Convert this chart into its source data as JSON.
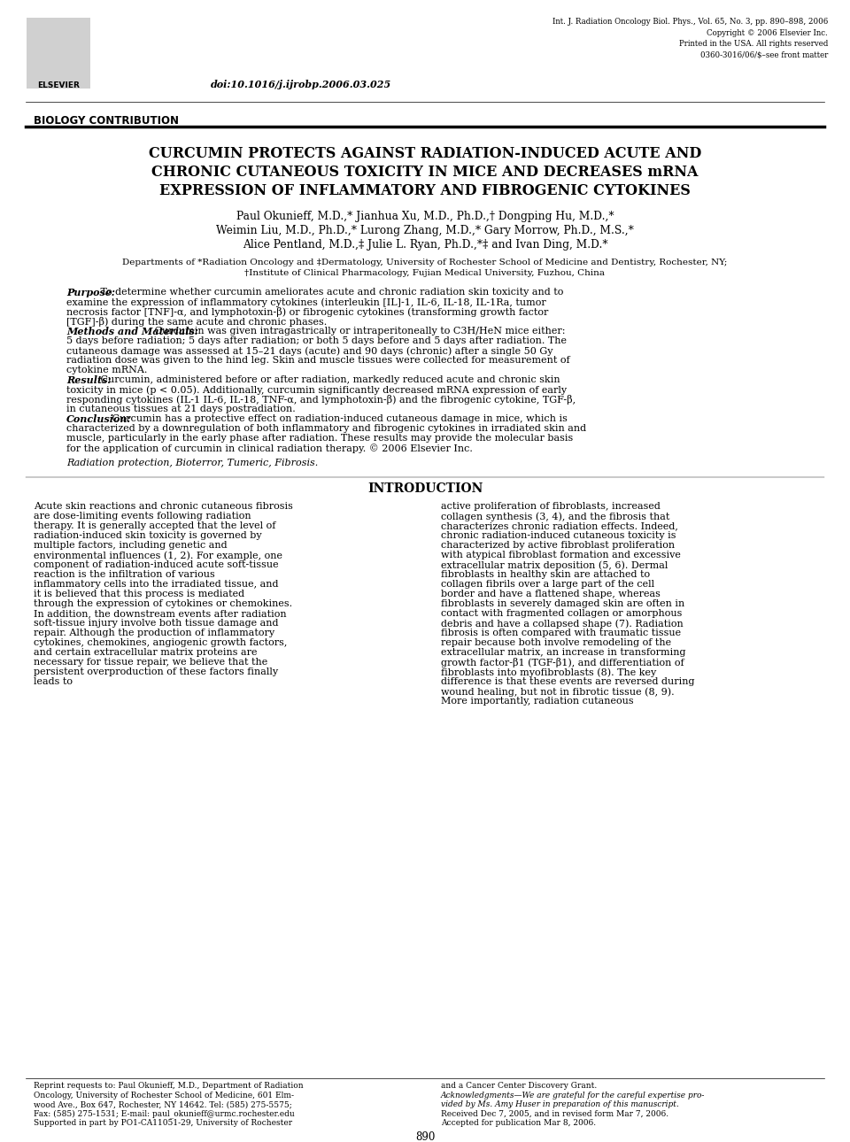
{
  "bg_color": "#ffffff",
  "header_journal": "Int. J. Radiation Oncology Biol. Phys., Vol. 65, No. 3, pp. 890–898, 2006",
  "header_copyright": "Copyright © 2006 Elsevier Inc.",
  "header_printed": "Printed in the USA. All rights reserved",
  "header_issn": "0360-3016/06/$–see front matter",
  "doi": "doi:10.1016/j.ijrobp.2006.03.025",
  "section_label": "BIOLOGY CONTRIBUTION",
  "paper_title_line1": "CURCUMIN PROTECTS AGAINST RADIATION-INDUCED ACUTE AND",
  "paper_title_line2": "CHRONIC CUTANEOUS TOXICITY IN MICE AND DECREASES mRNA",
  "paper_title_line3": "EXPRESSION OF INFLAMMATORY AND FIBROGENIC CYTOKINES",
  "authors_line1": "Paul Okunieff, M.D.,* Jianhua Xu, M.D., Ph.D.,† Dongping Hu, M.D.,*",
  "authors_line2": "Weimin Liu, M.D., Ph.D.,* Lurong Zhang, M.D.,* Gary Morrow, Ph.D., M.S.,*",
  "authors_line3": "Alice Pentland, M.D.,‡ Julie L. Ryan, Ph.D.,*‡ and Ivan Ding, M.D.*",
  "affil1": "Departments of *Radiation Oncology and ‡Dermatology, University of Rochester School of Medicine and Dentistry, Rochester, NY;",
  "affil2": "†Institute of Clinical Pharmacology, Fujian Medical University, Fuzhou, China",
  "abstract_purpose_label": "Purpose:",
  "abstract_purpose": " To determine whether curcumin ameliorates acute and chronic radiation skin toxicity and to examine the expression of inflammatory cytokines (interleukin [IL]-1, IL-6, IL-18, IL-1Ra, tumor necrosis factor [TNF]-α, and lymphotoxin-β) or fibrogenic cytokines (transforming growth factor [TGF]-β) during the same acute and chronic phases.",
  "abstract_methods_label": "Methods and Materials:",
  "abstract_methods": " Curcumin was given intragastrically or intraperitoneally to C3H/HeN mice either: 5 days before radiation; 5 days after radiation; or both 5 days before and 5 days after radiation. The cutaneous damage was assessed at 15–21 days (acute) and 90 days (chronic) after a single 50 Gy radiation dose was given to the hind leg. Skin and muscle tissues were collected for measurement of cytokine mRNA.",
  "abstract_results_label": "Results:",
  "abstract_results": " Curcumin, administered before or after radiation, markedly reduced acute and chronic skin toxicity in mice (p < 0.05). Additionally, curcumin significantly decreased mRNA expression of early responding cytokines (IL-1 IL-6, IL-18, TNF-α, and lymphotoxin-β) and the fibrogenic cytokine, TGF-β, in cutaneous tissues at 21 days postradiation.",
  "abstract_conclusion_label": "Conclusion:",
  "abstract_conclusion": " Curcumin has a protective effect on radiation-induced cutaneous damage in mice, which is characterized by a downregulation of both inflammatory and fibrogenic cytokines in irradiated skin and muscle, particularly in the early phase after radiation. These results may provide the molecular basis for the application of curcumin in clinical radiation therapy.  © 2006 Elsevier Inc.",
  "keywords_label": "Radiation protection, Bioterror, Tumeric, Fibrosis.",
  "intro_heading": "INTRODUCTION",
  "intro_col1_para1": "Acute skin reactions and chronic cutaneous fibrosis are dose-limiting events following radiation therapy. It is generally accepted that the level of radiation-induced skin toxicity is governed by multiple factors, including genetic and environmental influences (1, 2). For example, one component of radiation-induced acute soft-tissue reaction is the infiltration of various inflammatory cells into the irradiated tissue, and it is believed that this process is mediated through the expression of cytokines or chemokines. In addition, the downstream events after radiation soft-tissue injury involve both tissue damage and repair. Although the production of inflammatory cytokines, chemokines, angiogenic growth factors, and certain extracellular matrix proteins are necessary for tissue repair, we believe that the persistent overproduction of these factors finally leads to",
  "intro_col2_para1": "active proliferation of fibroblasts, increased collagen synthesis (3, 4), and the fibrosis that characterizes chronic radiation effects. Indeed, chronic radiation-induced cutaneous toxicity is characterized by active fibroblast proliferation with atypical fibroblast formation and excessive extracellular matrix deposition (5, 6). Dermal fibroblasts in healthy skin are attached to collagen fibrils over a large part of the cell border and have a flattened shape, whereas fibroblasts in severely damaged skin are often in contact with fragmented collagen or amorphous debris and have a collapsed shape (7). Radiation fibrosis is often compared with traumatic tissue repair because both involve remodeling of the extracellular matrix, an increase in transforming growth factor-β1 (TGF-β1), and differentiation of fibroblasts into myofibroblasts (8). The key difference is that these events are reversed during wound healing, but not in fibrotic tissue (8, 9). More importantly, radiation cutaneous",
  "footer_reprint1": "Reprint requests to: Paul Okunieff, M.D., Department of Radiation",
  "footer_reprint2": "Oncology, University of Rochester School of Medicine, 601 Elm-",
  "footer_reprint3": "wood Ave., Box 647, Rochester, NY 14642. Tel: (585) 275-5575;",
  "footer_reprint4": "Fax: (585) 275-1531; E-mail: paul_okunieff@urmc.rochester.edu",
  "footer_reprint5": "Supported in part by PO1-CA11051-29, University of Rochester",
  "footer_right1": "and a Cancer Center Discovery Grant.",
  "footer_right2": "Acknowledgments—We are grateful for the careful expertise pro-",
  "footer_right3": "vided by Ms. Amy Huser in preparation of this manuscript.",
  "footer_right4": "Received Dec 7, 2005, and in revised form Mar 7, 2006.",
  "footer_right5": "Accepted for publication Mar 8, 2006.",
  "page_number": "890"
}
